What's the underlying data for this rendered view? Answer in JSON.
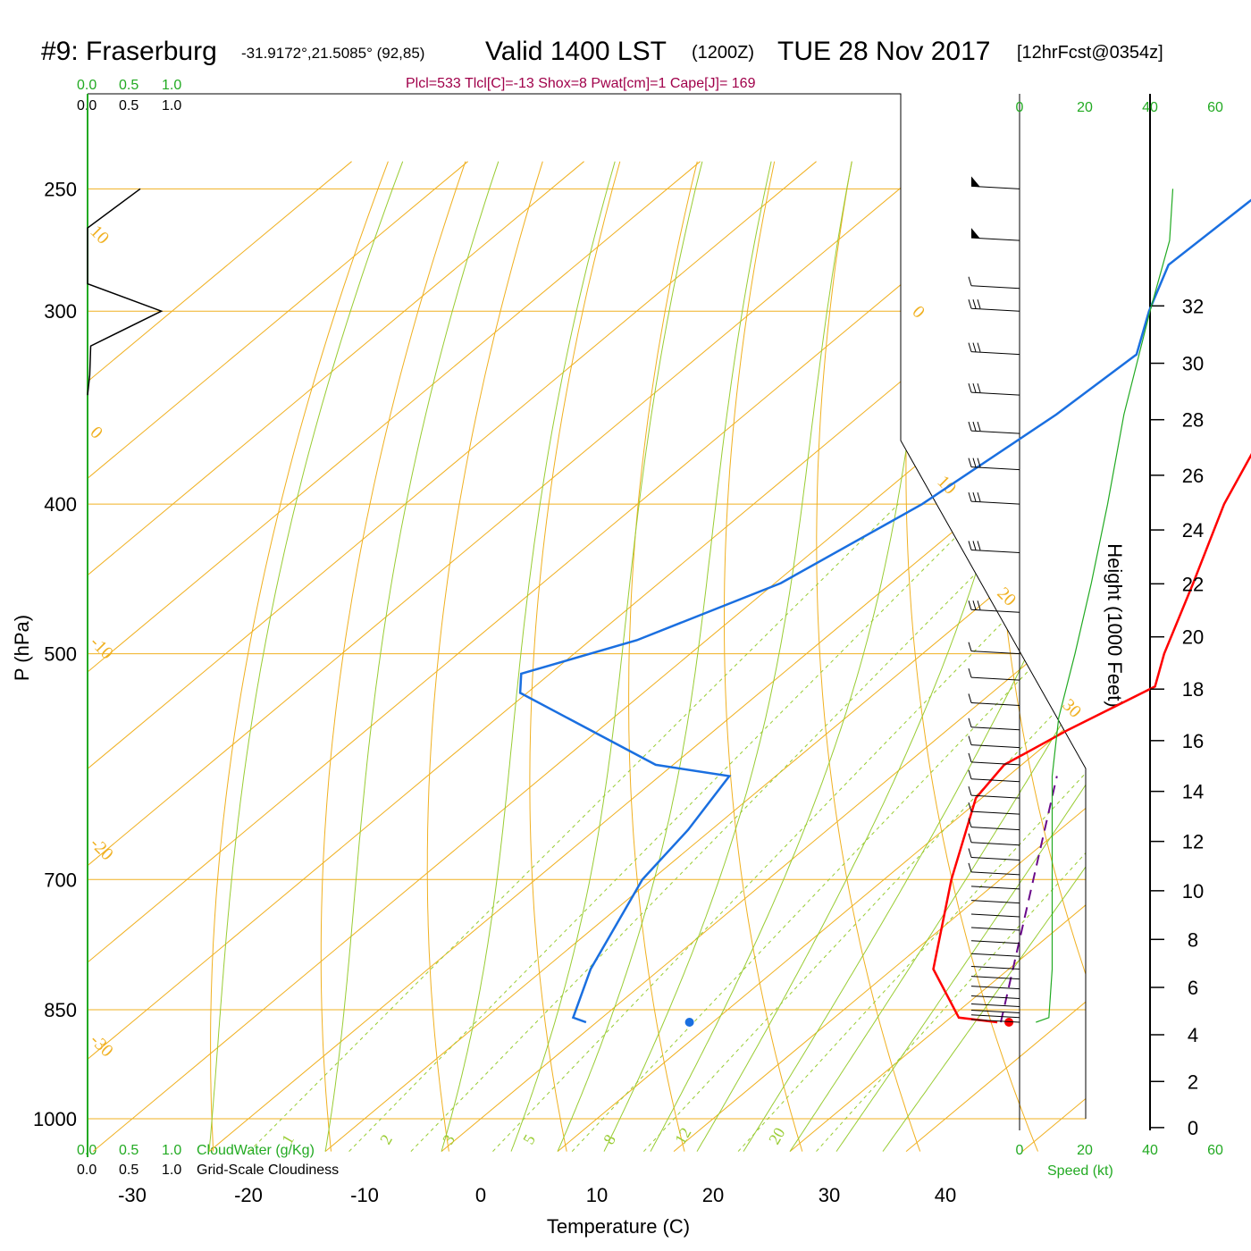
{
  "header": {
    "station": "#9: Fraserburg",
    "coords": "-31.9172°,21.5085° (92,85)",
    "valid": "Valid 1400 LST",
    "zulu": "(1200Z)",
    "date": "TUE 28 Nov 2017",
    "forecast": "[12hrFcst@0354z]",
    "params": "Plcl=533 Tlcl[C]=-13 Shox=8 Pwat[cm]=1 Cape[J]= 169"
  },
  "cloud_scale": {
    "cloudwater_ticks": [
      "0.0",
      "0.5",
      "1.0"
    ],
    "cloudiness_ticks": [
      "0.0",
      "0.5",
      "1.0"
    ],
    "cloudwater_label": "CloudWater (g/Kg)",
    "cloudiness_label": "Grid-Scale Cloudiness"
  },
  "colors": {
    "temperature": "#ff0000",
    "dewpoint": "#1a6fe0",
    "isotherm": "#f0b020",
    "dry_adiabat": "#f0b020",
    "moist_adiabat": "#99cc33",
    "mixing_ratio": "#99cc33",
    "parcel": "#6a0a8a",
    "speed": "#22aa22",
    "params": "#a0004a"
  },
  "chart_data": {
    "type": "skew-t",
    "xlabel": "Temperature (C)",
    "ylabel": "P (hPa)",
    "height_label": "Height (1000 Feet)",
    "speed_label": "Speed (kt)",
    "pressure_ticks": [
      250,
      300,
      400,
      500,
      700,
      850,
      1000
    ],
    "temperature_ticks": [
      -30,
      -20,
      -10,
      0,
      10,
      20,
      30,
      40
    ],
    "height_ticks": [
      0,
      2,
      4,
      6,
      8,
      10,
      12,
      14,
      16,
      18,
      20,
      22,
      24,
      26,
      28,
      30,
      32
    ],
    "speed_ticks": [
      0,
      20,
      40,
      60
    ],
    "isotherm_labels": [
      "-30",
      "-20",
      "-10",
      "0",
      "10",
      "0",
      "10",
      "20",
      "30"
    ],
    "mixing_ratio_labels": [
      "1",
      "2",
      "3",
      "5",
      "8",
      "12",
      "20"
    ],
    "temperature_profile": [
      {
        "p": 866,
        "t": 34.5
      },
      {
        "p": 860,
        "t": 30.7
      },
      {
        "p": 800,
        "t": 23.5
      },
      {
        "p": 700,
        "t": 15.8
      },
      {
        "p": 620,
        "t": 9.5
      },
      {
        "p": 590,
        "t": 8.5
      },
      {
        "p": 560,
        "t": 10.4
      },
      {
        "p": 525,
        "t": 13.4
      },
      {
        "p": 500,
        "t": 10.8
      },
      {
        "p": 450,
        "t": 6.0
      },
      {
        "p": 400,
        "t": 0.5
      },
      {
        "p": 350,
        "t": -4.5
      },
      {
        "p": 300,
        "t": -13.4
      },
      {
        "p": 280,
        "t": -16.2
      },
      {
        "p": 250,
        "t": -22.0
      }
    ],
    "dewpoint_profile": [
      {
        "p": 866,
        "t": -0.9
      },
      {
        "p": 860,
        "t": -2.5
      },
      {
        "p": 800,
        "t": -6.0
      },
      {
        "p": 700,
        "t": -10.8
      },
      {
        "p": 650,
        "t": -12.0
      },
      {
        "p": 600,
        "t": -14.0
      },
      {
        "p": 590,
        "t": -21.5
      },
      {
        "p": 530,
        "t": -40.6
      },
      {
        "p": 515,
        "t": -42.5
      },
      {
        "p": 490,
        "t": -36.0
      },
      {
        "p": 450,
        "t": -29.5
      },
      {
        "p": 400,
        "t": -25.5
      },
      {
        "p": 350,
        "t": -23.2
      },
      {
        "p": 320,
        "t": -22.5
      },
      {
        "p": 300,
        "t": -25.9
      },
      {
        "p": 280,
        "t": -29.0
      },
      {
        "p": 250,
        "t": -28.5
      }
    ],
    "parcel_path": [
      {
        "p": 866,
        "t": 34.8
      },
      {
        "p": 600,
        "t": 14.2
      }
    ],
    "surface_temperature": {
      "p": 866,
      "t": 35.5
    },
    "surface_dewpoint": {
      "p": 866,
      "t": 8.0
    },
    "cloudiness_profile": [
      {
        "p": 250,
        "v": 0.5
      },
      {
        "p": 265,
        "v": 0.0
      },
      {
        "p": 288,
        "v": 0.0
      },
      {
        "p": 300,
        "v": 0.7
      },
      {
        "p": 316,
        "v": 0.03
      },
      {
        "p": 330,
        "v": 0.02
      },
      {
        "p": 340,
        "v": 0.0
      }
    ],
    "wind_speed_profile": [
      {
        "p": 866,
        "v": 5
      },
      {
        "p": 860,
        "v": 9
      },
      {
        "p": 800,
        "v": 10
      },
      {
        "p": 700,
        "v": 10
      },
      {
        "p": 600,
        "v": 10
      },
      {
        "p": 550,
        "v": 12
      },
      {
        "p": 500,
        "v": 17
      },
      {
        "p": 450,
        "v": 22
      },
      {
        "p": 400,
        "v": 27
      },
      {
        "p": 350,
        "v": 32
      },
      {
        "p": 300,
        "v": 40
      },
      {
        "p": 270,
        "v": 46
      },
      {
        "p": 250,
        "v": 47
      }
    ],
    "wind_barb_levels": [
      250,
      270,
      290,
      300,
      320,
      340,
      360,
      380,
      400,
      430,
      470,
      500,
      520,
      540,
      560,
      575,
      590,
      605,
      620,
      635,
      650,
      665,
      680,
      695,
      710,
      725,
      740,
      755,
      770,
      785,
      800,
      812,
      824,
      836,
      846,
      854,
      860,
      866
    ]
  }
}
